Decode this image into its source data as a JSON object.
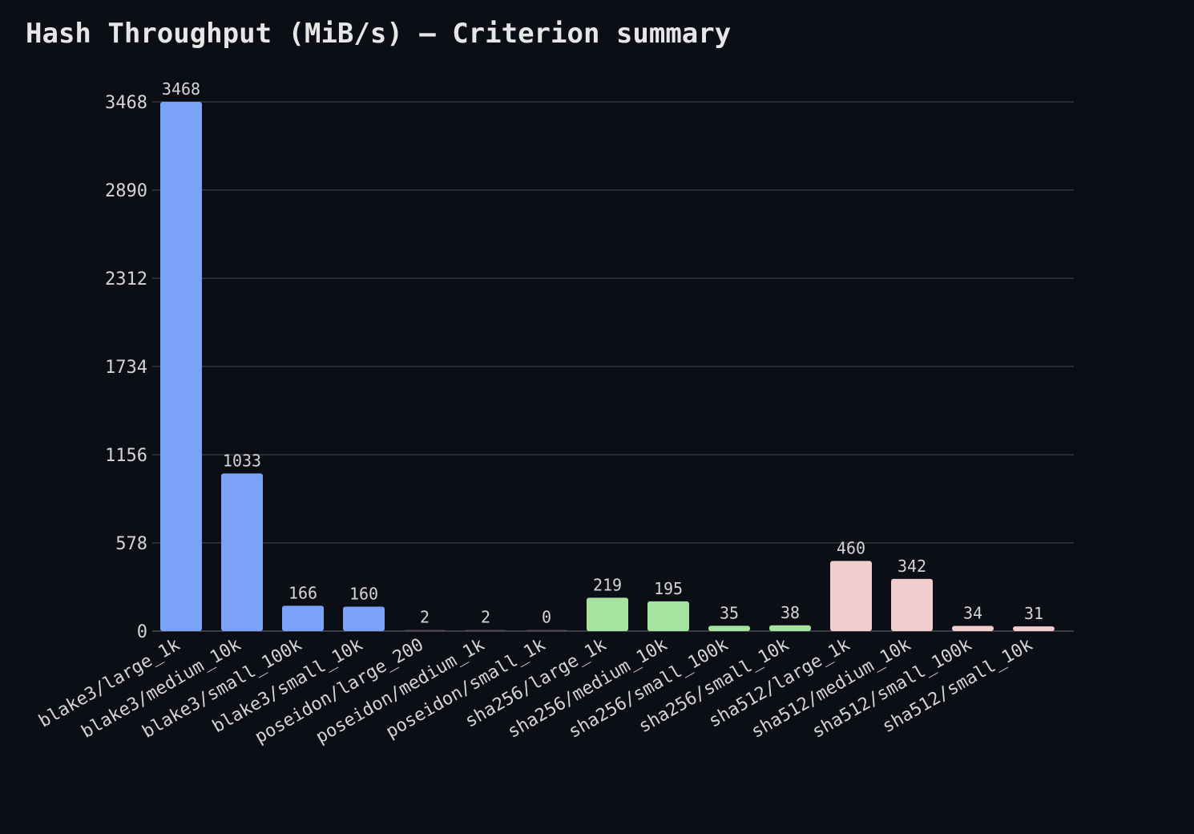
{
  "chart_data": {
    "type": "bar",
    "title": "Hash Throughput (MiB/s) — Criterion summary",
    "xlabel": "",
    "ylabel": "",
    "ylim": [
      0,
      3468
    ],
    "yticks": [
      0,
      578,
      1156,
      1734,
      2312,
      2890,
      3468
    ],
    "grid": true,
    "categories": [
      "blake3/large_1k",
      "blake3/medium_10k",
      "blake3/small_100k",
      "blake3/small_10k",
      "poseidon/large_200",
      "poseidon/medium_1k",
      "poseidon/small_1k",
      "sha256/large_1k",
      "sha256/medium_10k",
      "sha256/small_100k",
      "sha256/small_10k",
      "sha512/large_1k",
      "sha512/medium_10k",
      "sha512/small_100k",
      "sha512/small_10k"
    ],
    "values": [
      3468,
      1033,
      166,
      160,
      2,
      2,
      0,
      219,
      195,
      35,
      38,
      460,
      342,
      34,
      31
    ],
    "colors": [
      "#7aa2f7",
      "#7aa2f7",
      "#7aa2f7",
      "#7aa2f7",
      "#5a4a55",
      "#5a4a55",
      "#5a4a55",
      "#a6e3a1",
      "#a6e3a1",
      "#a6e3a1",
      "#a6e3a1",
      "#f2cdcd",
      "#f2cdcd",
      "#f2cdcd",
      "#f2cdcd"
    ],
    "background": "#0b0e14",
    "gridColor": "#2a2d33"
  }
}
